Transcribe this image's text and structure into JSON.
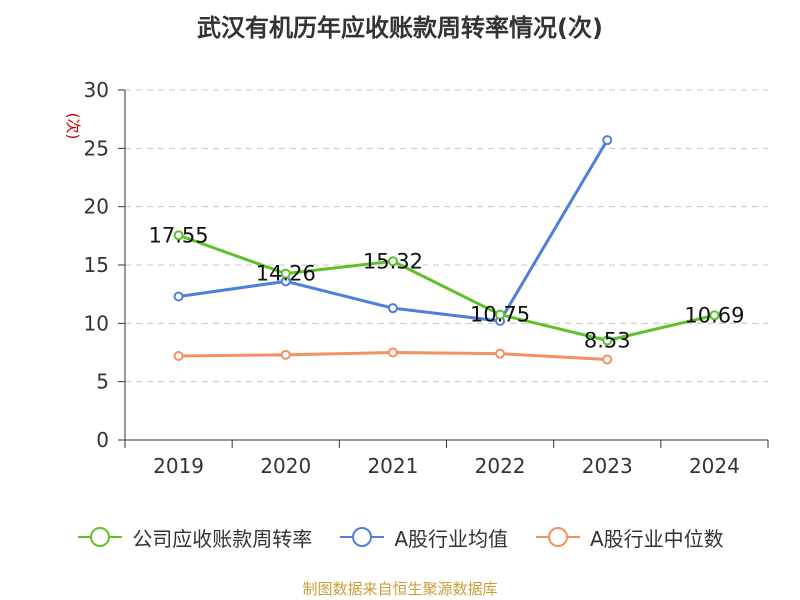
{
  "title": "武汉有机历年应收账款周转率情况(次)",
  "source": "制图数据来自恒生聚源数据库",
  "chart_data": {
    "type": "line",
    "title": "武汉有机历年应收账款周转率情况(次)",
    "ylabel": "(次)",
    "xlabel": "",
    "categories": [
      "2019",
      "2020",
      "2021",
      "2022",
      "2023",
      "2024"
    ],
    "ylim": [
      0,
      30
    ],
    "yticks": [
      0,
      5,
      10,
      15,
      20,
      25,
      30
    ],
    "grid": true,
    "legend_position": "bottom",
    "series": [
      {
        "name": "公司应收账款周转率",
        "color": "#5ec12a",
        "values": [
          17.55,
          14.26,
          15.32,
          10.75,
          8.53,
          10.69
        ],
        "labels": [
          "17.55",
          "14.26",
          "15.32",
          "10.75",
          "8.53",
          "10.69"
        ]
      },
      {
        "name": "A股行业均值",
        "color": "#4f7fd9",
        "values": [
          12.3,
          13.6,
          11.3,
          10.2,
          25.7,
          null
        ]
      },
      {
        "name": "A股行业中位数",
        "color": "#f59060",
        "values": [
          7.2,
          7.3,
          7.5,
          7.4,
          6.9,
          null
        ]
      }
    ]
  }
}
